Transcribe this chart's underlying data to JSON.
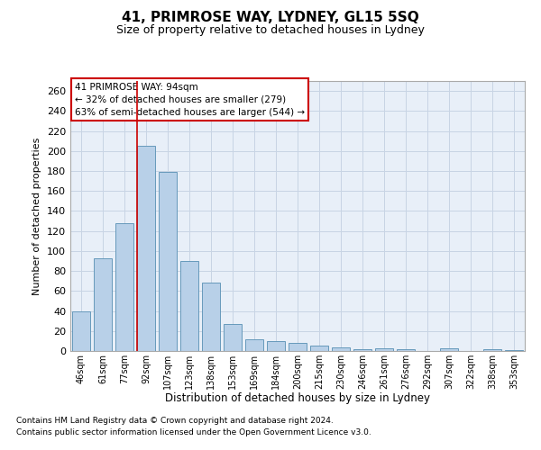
{
  "title": "41, PRIMROSE WAY, LYDNEY, GL15 5SQ",
  "subtitle": "Size of property relative to detached houses in Lydney",
  "xlabel": "Distribution of detached houses by size in Lydney",
  "ylabel": "Number of detached properties",
  "categories": [
    "46sqm",
    "61sqm",
    "77sqm",
    "92sqm",
    "107sqm",
    "123sqm",
    "138sqm",
    "153sqm",
    "169sqm",
    "184sqm",
    "200sqm",
    "215sqm",
    "230sqm",
    "246sqm",
    "261sqm",
    "276sqm",
    "292sqm",
    "307sqm",
    "322sqm",
    "338sqm",
    "353sqm"
  ],
  "values": [
    40,
    93,
    128,
    205,
    179,
    90,
    68,
    27,
    12,
    10,
    8,
    5,
    4,
    2,
    3,
    2,
    0,
    3,
    0,
    2,
    1
  ],
  "highlight_index": 3,
  "bar_color": "#b8d0e8",
  "bar_edge_color": "#6699bb",
  "highlight_line_color": "#cc0000",
  "grid_color": "#c8d4e4",
  "background_color": "#e8eff8",
  "ylim": [
    0,
    270
  ],
  "yticks": [
    0,
    20,
    40,
    60,
    80,
    100,
    120,
    140,
    160,
    180,
    200,
    220,
    240,
    260
  ],
  "annotation_title": "41 PRIMROSE WAY: 94sqm",
  "annotation_line1": "← 32% of detached houses are smaller (279)",
  "annotation_line2": "63% of semi-detached houses are larger (544) →",
  "annotation_box_color": "white",
  "annotation_box_edge": "#cc0000",
  "footer1": "Contains HM Land Registry data © Crown copyright and database right 2024.",
  "footer2": "Contains public sector information licensed under the Open Government Licence v3.0."
}
